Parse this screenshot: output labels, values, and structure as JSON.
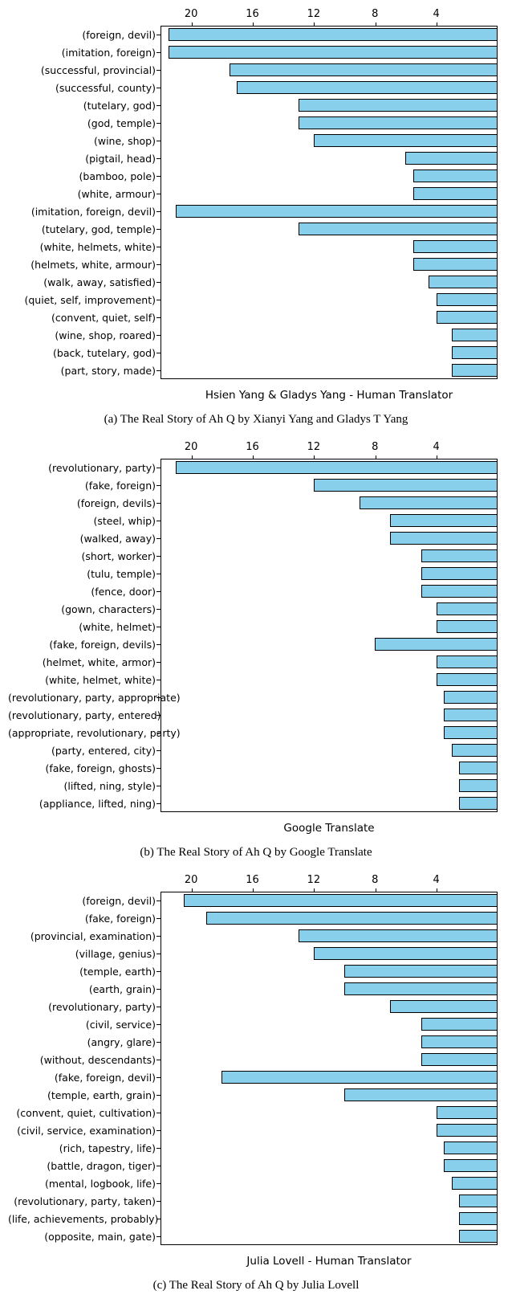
{
  "axis": {
    "min": 0,
    "max": 22,
    "ticks": [
      20,
      16,
      12,
      8,
      4
    ],
    "reversed": true,
    "label_fontsize": 13,
    "ytick_fontsize": 12.5
  },
  "bar_color": "#87cfeb",
  "bar_border": "#000000",
  "background": "#ffffff",
  "charts": [
    {
      "xlabel": "Hsien Yang & Gladys Yang - Human Translator",
      "caption": "(a) The Real Story of Ah Q by Xianyi Yang and Gladys T Yang",
      "rows": [
        {
          "label": "(foreign, devil)",
          "value": 21.5
        },
        {
          "label": "(imitation, foreign)",
          "value": 21.5
        },
        {
          "label": "(successful, provincial)",
          "value": 17.5
        },
        {
          "label": "(successful, county)",
          "value": 17
        },
        {
          "label": "(tutelary, god)",
          "value": 13
        },
        {
          "label": "(god, temple)",
          "value": 13
        },
        {
          "label": "(wine, shop)",
          "value": 12
        },
        {
          "label": "(pigtail, head)",
          "value": 6
        },
        {
          "label": "(bamboo, pole)",
          "value": 5.5
        },
        {
          "label": "(white, armour)",
          "value": 5.5
        },
        {
          "label": "(imitation, foreign, devil)",
          "value": 21
        },
        {
          "label": "(tutelary, god, temple)",
          "value": 13
        },
        {
          "label": "(white, helmets, white)",
          "value": 5.5
        },
        {
          "label": "(helmets, white, armour)",
          "value": 5.5
        },
        {
          "label": "(walk, away, satisfied)",
          "value": 4.5
        },
        {
          "label": "(quiet, self, improvement)",
          "value": 4
        },
        {
          "label": "(convent, quiet, self)",
          "value": 4
        },
        {
          "label": "(wine, shop, roared)",
          "value": 3
        },
        {
          "label": "(back, tutelary, god)",
          "value": 3
        },
        {
          "label": "(part, story, made)",
          "value": 3
        }
      ]
    },
    {
      "xlabel": "Google Translate",
      "caption": "(b) The Real Story of Ah Q by Google Translate",
      "rows": [
        {
          "label": "(revolutionary, party)",
          "value": 21
        },
        {
          "label": "(fake, foreign)",
          "value": 12
        },
        {
          "label": "(foreign, devils)",
          "value": 9
        },
        {
          "label": "(steel, whip)",
          "value": 7
        },
        {
          "label": "(walked, away)",
          "value": 7
        },
        {
          "label": "(short, worker)",
          "value": 5
        },
        {
          "label": "(tulu, temple)",
          "value": 5
        },
        {
          "label": "(fence, door)",
          "value": 5
        },
        {
          "label": "(gown, characters)",
          "value": 4
        },
        {
          "label": "(white, helmet)",
          "value": 4
        },
        {
          "label": "(fake, foreign, devils)",
          "value": 8
        },
        {
          "label": "(helmet, white, armor)",
          "value": 4
        },
        {
          "label": "(white, helmet, white)",
          "value": 4
        },
        {
          "label": "(revolutionary, party, appropriate)",
          "value": 3.5
        },
        {
          "label": "(revolutionary, party, entered)",
          "value": 3.5
        },
        {
          "label": "(appropriate, revolutionary, party)",
          "value": 3.5
        },
        {
          "label": "(party, entered, city)",
          "value": 3
        },
        {
          "label": "(fake, foreign, ghosts)",
          "value": 2.5
        },
        {
          "label": "(lifted, ning, style)",
          "value": 2.5
        },
        {
          "label": "(appliance, lifted, ning)",
          "value": 2.5
        }
      ]
    },
    {
      "xlabel": "Julia Lovell - Human Translator",
      "caption": "(c) The Real Story of Ah Q by Julia Lovell",
      "rows": [
        {
          "label": "(foreign, devil)",
          "value": 20.5
        },
        {
          "label": "(fake, foreign)",
          "value": 19
        },
        {
          "label": "(provincial, examination)",
          "value": 13
        },
        {
          "label": "(village, genius)",
          "value": 12
        },
        {
          "label": "(temple, earth)",
          "value": 10
        },
        {
          "label": "(earth, grain)",
          "value": 10
        },
        {
          "label": "(revolutionary, party)",
          "value": 7
        },
        {
          "label": "(civil, service)",
          "value": 5
        },
        {
          "label": "(angry, glare)",
          "value": 5
        },
        {
          "label": "(without, descendants)",
          "value": 5
        },
        {
          "label": "(fake, foreign, devil)",
          "value": 18
        },
        {
          "label": "(temple, earth, grain)",
          "value": 10
        },
        {
          "label": "(convent, quiet, cultivation)",
          "value": 4
        },
        {
          "label": "(civil, service, examination)",
          "value": 4
        },
        {
          "label": "(rich, tapestry, life)",
          "value": 3.5
        },
        {
          "label": "(battle, dragon, tiger)",
          "value": 3.5
        },
        {
          "label": "(mental, logbook, life)",
          "value": 3
        },
        {
          "label": "(revolutionary, party, taken)",
          "value": 2.5
        },
        {
          "label": "(life, achievements, probably)",
          "value": 2.5
        },
        {
          "label": "(opposite, main, gate)",
          "value": 2.5
        }
      ]
    }
  ]
}
